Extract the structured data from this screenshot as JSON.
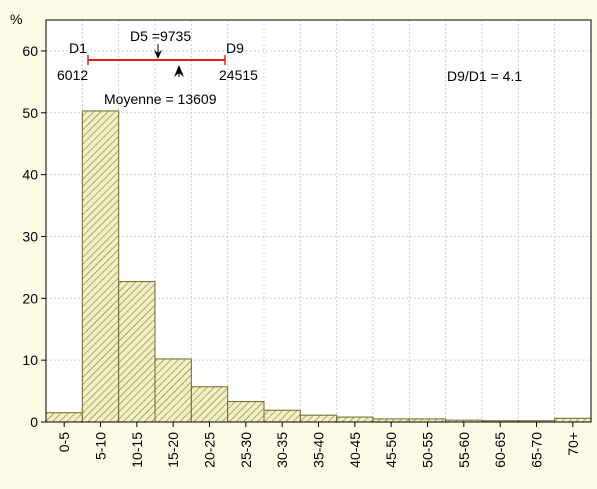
{
  "chart_data": {
    "type": "bar",
    "title": "",
    "xlabel": "",
    "ylabel": "%",
    "ylim": [
      0,
      65
    ],
    "yticks": [
      0,
      10,
      20,
      30,
      40,
      50,
      60
    ],
    "grid": true,
    "categories": [
      "0-5",
      "5-10",
      "10-15",
      "15-20",
      "20-25",
      "25-30",
      "30-35",
      "35-40",
      "40-45",
      "45-50",
      "50-55",
      "55-60",
      "60-65",
      "65-70",
      "70+"
    ],
    "values": [
      1.5,
      50.3,
      22.7,
      10.2,
      5.7,
      3.3,
      1.9,
      1.1,
      0.8,
      0.5,
      0.5,
      0.3,
      0.2,
      0.2,
      0.6
    ],
    "annotations": {
      "d1_label": "D1",
      "d1_value": "6012",
      "d5_label": "D5 =9735",
      "d9_label": "D9",
      "d9_value": "24515",
      "mean_label": "Moyenne = 13609",
      "ratio_label": "D9/D1 = 4.1"
    },
    "colors": {
      "background": "#fbfbe6",
      "bar_fill": "#f2f0c4",
      "bar_hatch": "#7f7a35",
      "bar_stroke": "#6d6a2a",
      "grid": "#cfcfcf",
      "decile_line": "#e0201c"
    }
  }
}
